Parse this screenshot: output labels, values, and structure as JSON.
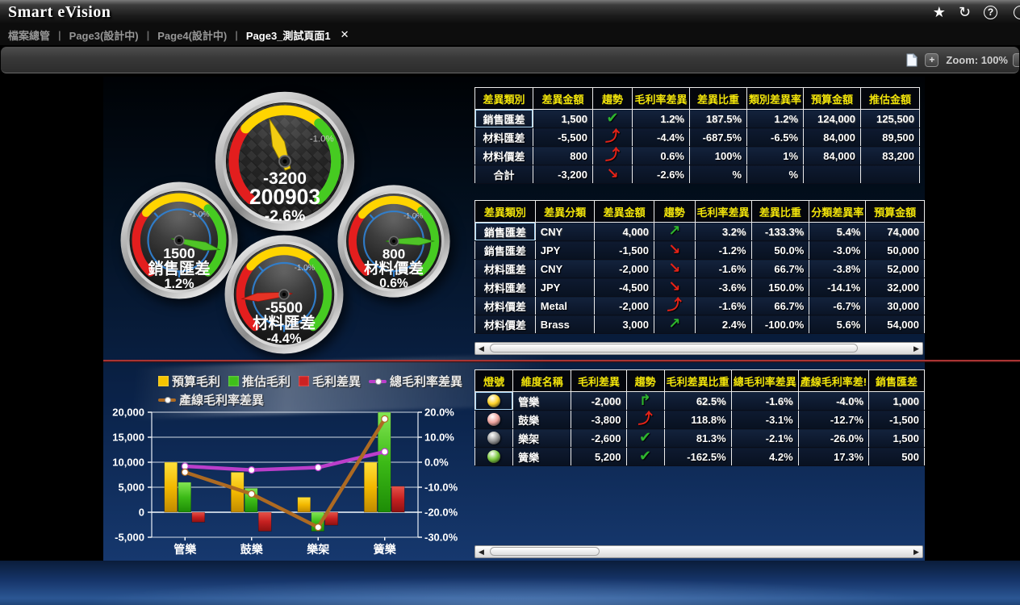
{
  "app": {
    "title": "Smart eVision"
  },
  "titlebar": {
    "icons": {
      "star": "★",
      "refresh": "↻",
      "help": "?"
    }
  },
  "tabs": {
    "separator": "|",
    "close_glyph": "✕",
    "items": [
      {
        "label": "檔案總管"
      },
      {
        "label": "Page3(設計中)"
      },
      {
        "label": "Page4(設計中)"
      },
      {
        "label": "Page3_測試頁面1"
      }
    ]
  },
  "toolbar": {
    "zoom_label": "Zoom: 100%",
    "zoom_in_label": "+"
  },
  "scrollbar": {
    "left_arrow": "◀",
    "right_arrow": "▶"
  },
  "gauges": {
    "main": {
      "value": "-3200",
      "period": "200903",
      "pct": "-2.6%",
      "range_label": "-1.0%"
    },
    "left": {
      "value": "1500",
      "name": "銷售匯差",
      "pct": "1.2%",
      "range_label": "-1.0%"
    },
    "right": {
      "value": "800",
      "name": "材料價差",
      "pct": "0.6%",
      "range_label": "-1.0%"
    },
    "bottom": {
      "value": "-5500",
      "name": "材料匯差",
      "pct": "-4.4%",
      "range_label": "-1.0%"
    }
  },
  "trend_icons": {
    "check-green": {
      "glyph": "✔",
      "color": "#2eb52e"
    },
    "curve-up-red": {
      "glyph": "⤴",
      "color": "#e52318"
    },
    "down-red": {
      "glyph": "↘",
      "color": "#e52318"
    },
    "up-green": {
      "glyph": "↗",
      "color": "#2eb52e"
    },
    "turn-up-green": {
      "glyph": "↱",
      "color": "#2eb52e"
    }
  },
  "light_colors": {
    "yellow": "#ffd227",
    "pink": "#efa49e",
    "gray": "#9a9a9a",
    "green": "#7cc93e"
  },
  "table1": {
    "headers": [
      "差異類別",
      "差異金額",
      "趨勢",
      "毛利率差異",
      "差異比重",
      "類別差異率",
      "預算金額",
      "推估金額"
    ],
    "widths": [
      72,
      74,
      49,
      71,
      71,
      69,
      71,
      73
    ],
    "aligns": [
      "center",
      "right",
      "center",
      "right",
      "right",
      "right",
      "right",
      "right"
    ],
    "selected_row": 0,
    "rows": [
      [
        "銷售匯差",
        "1,500",
        "@t:check-green",
        "1.2%",
        "187.5%",
        "1.2%",
        "124,000",
        "125,500"
      ],
      [
        "材料匯差",
        "-5,500",
        "@t:curve-up-red",
        "-4.4%",
        "-687.5%",
        "-6.5%",
        "84,000",
        "89,500"
      ],
      [
        "材料價差",
        "800",
        "@t:curve-up-red",
        "0.6%",
        "100%",
        "1%",
        "84,000",
        "83,200"
      ],
      [
        "合計",
        "-3,200",
        "@t:down-red",
        "-2.6%",
        "%",
        "%",
        "",
        ""
      ]
    ]
  },
  "table2": {
    "headers": [
      "差異類別",
      "差異分類",
      "差異金額",
      "趨勢",
      "毛利率差異",
      "差異比重",
      "分類差異率",
      "預算金額"
    ],
    "widths": [
      75,
      74,
      74,
      51,
      68,
      72,
      69,
      73
    ],
    "aligns": [
      "center",
      "left",
      "right",
      "center",
      "right",
      "right",
      "right",
      "right"
    ],
    "selected_row": 0,
    "rows": [
      [
        "銷售匯差",
        "CNY",
        "4,000",
        "@t:up-green",
        "3.2%",
        "-133.3%",
        "5.4%",
        "74,000"
      ],
      [
        "銷售匯差",
        "JPY",
        "-1,500",
        "@t:down-red",
        "-1.2%",
        "50.0%",
        "-3.0%",
        "50,000"
      ],
      [
        "材料匯差",
        "CNY",
        "-2,000",
        "@t:down-red",
        "-1.6%",
        "66.7%",
        "-3.8%",
        "52,000"
      ],
      [
        "材料匯差",
        "JPY",
        "-4,500",
        "@t:down-red",
        "-3.6%",
        "150.0%",
        "-14.1%",
        "32,000"
      ],
      [
        "材料價差",
        "Metal",
        "-2,000",
        "@t:curve-up-red",
        "-1.6%",
        "66.7%",
        "-6.7%",
        "30,000"
      ],
      [
        "材料價差",
        "Brass",
        "3,000",
        "@t:up-green",
        "2.4%",
        "-100.0%",
        "5.6%",
        "54,000"
      ]
    ]
  },
  "table3": {
    "headers": [
      "燈號",
      "維度名稱",
      "毛利差異",
      "趨勢",
      "毛利差異比重",
      "總毛利率差異",
      "產線毛利率差!",
      "銷售匯差"
    ],
    "widths": [
      50,
      75,
      70,
      50,
      80,
      80,
      80,
      71
    ],
    "aligns": [
      "center",
      "left",
      "right",
      "center",
      "right",
      "right",
      "right",
      "right"
    ],
    "selected_row": 0,
    "rows": [
      [
        "@l:yellow",
        "管樂",
        "-2,000",
        "@t:turn-up-green",
        "62.5%",
        "-1.6%",
        "-4.0%",
        "1,000"
      ],
      [
        "@l:pink",
        "鼓樂",
        "-3,800",
        "@t:curve-up-red",
        "118.8%",
        "-3.1%",
        "-12.7%",
        "-1,500"
      ],
      [
        "@l:gray",
        "樂架",
        "-2,600",
        "@t:check-green",
        "81.3%",
        "-2.1%",
        "-26.0%",
        "1,500"
      ],
      [
        "@l:green",
        "簧樂",
        "5,200",
        "@t:check-green",
        "-162.5%",
        "4.2%",
        "17.3%",
        "500"
      ]
    ]
  },
  "chart_data": {
    "type": "bar-line-combo",
    "categories": [
      "管樂",
      "鼓樂",
      "樂架",
      "簧樂"
    ],
    "series": [
      {
        "name": "預算毛利",
        "type": "bar",
        "axis": "left",
        "color": "#f5c400",
        "values": [
          10000,
          8000,
          3000,
          10000
        ]
      },
      {
        "name": "推估毛利",
        "type": "bar",
        "axis": "left",
        "color": "#3fbf1a",
        "values": [
          6000,
          4800,
          -3800,
          20000
        ]
      },
      {
        "name": "毛利差異",
        "type": "bar",
        "axis": "left",
        "color": "#cc2222",
        "values": [
          -2000,
          -3800,
          -2600,
          5200
        ]
      },
      {
        "name": "總毛利率差異",
        "type": "line",
        "axis": "right",
        "color": "#bb3ecb",
        "values": [
          -1.6,
          -3.1,
          -2.1,
          4.2
        ]
      },
      {
        "name": "產線毛利率差異",
        "type": "line",
        "axis": "right",
        "color": "#ad6a22",
        "values": [
          -4.0,
          -12.7,
          -26.0,
          17.3
        ]
      }
    ],
    "left_axis": {
      "min": -5000,
      "max": 20000,
      "ticks": [
        {
          "v": 20000,
          "label": "20,000"
        },
        {
          "v": 15000,
          "label": "15,000"
        },
        {
          "v": 10000,
          "label": "10,000"
        },
        {
          "v": 5000,
          "label": "5,000"
        },
        {
          "v": 0,
          "label": "0"
        },
        {
          "v": -5000,
          "label": "-5,000"
        }
      ]
    },
    "right_axis": {
      "min": -30,
      "max": 20,
      "ticks": [
        {
          "v": 20,
          "label": "20.0%"
        },
        {
          "v": 10,
          "label": "10.0%"
        },
        {
          "v": 0,
          "label": "0.0%"
        },
        {
          "v": -10,
          "label": "-10.0%"
        },
        {
          "v": -20,
          "label": "-20.0%"
        },
        {
          "v": -30,
          "label": "-30.0%"
        }
      ]
    },
    "grid": true,
    "legend_position": "top"
  }
}
